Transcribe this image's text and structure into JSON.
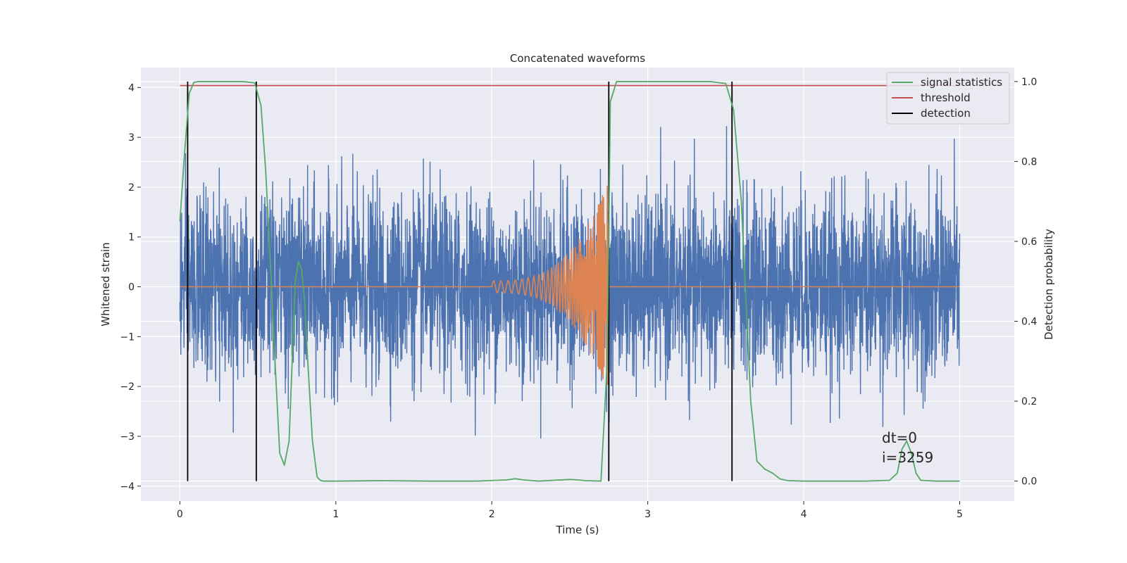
{
  "chart_data": {
    "type": "line",
    "title": "Concatenated waveforms",
    "xlabel": "Time (s)",
    "ylabel": "Whitened strain",
    "y2label": "Detection probability",
    "xlim": [
      -0.25,
      5.35
    ],
    "ylim": [
      -4.3,
      4.4
    ],
    "y2lim": [
      -0.05,
      1.035
    ],
    "xticks": [
      0,
      1,
      2,
      3,
      4,
      5
    ],
    "yticks": [
      -4,
      -3,
      -2,
      -1,
      0,
      1,
      2,
      3,
      4
    ],
    "y2ticks": [
      0.0,
      0.2,
      0.4,
      0.6,
      0.8,
      1.0
    ],
    "xtick_labels": [
      "0",
      "1",
      "2",
      "3",
      "4",
      "5"
    ],
    "ytick_labels": [
      "−4",
      "−3",
      "−2",
      "−1",
      "0",
      "1",
      "2",
      "3",
      "4"
    ],
    "y2tick_labels": [
      "0.0",
      "0.2",
      "0.4",
      "0.6",
      "0.8",
      "1.0"
    ],
    "grid": true,
    "legend_position": "top-right",
    "colors": {
      "background": "#eaeaf2",
      "grid": "#ffffff",
      "strain": "#4c72b0",
      "injection": "#dd8452",
      "signal_statistics": "#55a868",
      "threshold": "#c44e52",
      "detection": "#000000"
    },
    "series": [
      {
        "key": "strain",
        "axis": "left",
        "x_range": [
          0,
          5
        ],
        "noise_std": 0.9,
        "max_abs": 3.8
      },
      {
        "key": "injection",
        "axis": "left",
        "x_range": [
          0,
          5
        ],
        "chirp_start": 2.0,
        "chirp_end": 2.75,
        "peak_amplitude": 2.15,
        "values_outside_chirp": 0
      },
      {
        "key": "signal_statistics",
        "name": "signal statistics",
        "axis": "right",
        "x": [
          0.0,
          0.03,
          0.06,
          0.09,
          0.12,
          0.2,
          0.3,
          0.4,
          0.48,
          0.52,
          0.55,
          0.58,
          0.61,
          0.64,
          0.67,
          0.7,
          0.72,
          0.74,
          0.76,
          0.78,
          0.8,
          0.82,
          0.85,
          0.88,
          0.9,
          0.92,
          0.95,
          1.0,
          1.3,
          1.6,
          1.9,
          2.1,
          2.15,
          2.2,
          2.3,
          2.5,
          2.55,
          2.6,
          2.7,
          2.74,
          2.76,
          2.8,
          2.9,
          3.0,
          3.2,
          3.4,
          3.5,
          3.55,
          3.6,
          3.63,
          3.66,
          3.7,
          3.75,
          3.8,
          3.85,
          3.9,
          4.0,
          4.2,
          4.4,
          4.55,
          4.6,
          4.63,
          4.66,
          4.69,
          4.72,
          4.75,
          4.85,
          5.0
        ],
        "y": [
          0.65,
          0.82,
          0.97,
          0.998,
          1.0,
          1.0,
          1.0,
          1.0,
          0.997,
          0.94,
          0.78,
          0.55,
          0.3,
          0.07,
          0.04,
          0.1,
          0.3,
          0.5,
          0.55,
          0.53,
          0.45,
          0.3,
          0.1,
          0.01,
          0.002,
          0.0,
          0.0,
          0.0,
          0.001,
          0.0,
          0.0,
          0.003,
          0.006,
          0.003,
          0.0,
          0.004,
          0.003,
          0.001,
          0.0,
          0.3,
          0.95,
          1.0,
          1.0,
          1.0,
          1.0,
          1.0,
          0.995,
          0.93,
          0.7,
          0.45,
          0.2,
          0.05,
          0.03,
          0.02,
          0.005,
          0.001,
          0.0,
          0.0,
          0.0,
          0.002,
          0.02,
          0.08,
          0.1,
          0.07,
          0.02,
          0.002,
          0.0,
          0.0
        ]
      },
      {
        "key": "threshold",
        "name": "threshold",
        "axis": "right",
        "x": [
          0.0,
          5.0
        ],
        "y": [
          0.99,
          0.99
        ]
      },
      {
        "key": "detection",
        "name": "detection",
        "axis": "right",
        "x": [
          0.05,
          0.49,
          2.75,
          3.54
        ],
        "y_range": [
          0.0,
          1.0
        ]
      }
    ],
    "annotations": [
      "dt=0",
      "i=3259"
    ],
    "annotation_position": {
      "x": 4.5,
      "y": -3.0
    }
  }
}
